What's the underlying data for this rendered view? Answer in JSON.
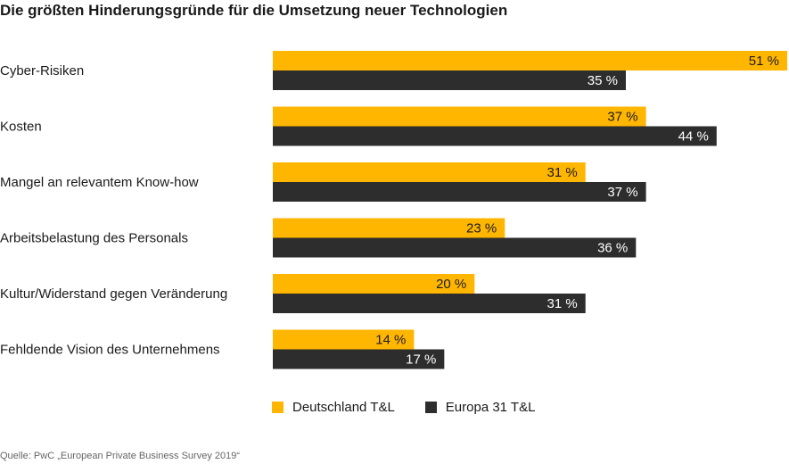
{
  "title": "Die größten Hinderungsgründe für die Umsetzung neuer Technologien",
  "source": "Quelle: PwC „European Private Business Survey 2019“",
  "chart_data": {
    "type": "bar",
    "orientation": "horizontal",
    "title": "Die größten Hinderungsgründe für die Umsetzung neuer Technologien",
    "categories": [
      "Cyber-Risiken",
      "Kosten",
      "Mangel an relevantem Know-how",
      "Arbeitsbelastung des Personals",
      "Kultur/Widerstand gegen Veränderung",
      "Fehldende Vision des Unternehmens"
    ],
    "series": [
      {
        "name": "Deutschland T&L",
        "color": "#ffb600",
        "label_color": "#1a1a1a",
        "values": [
          51,
          37,
          31,
          23,
          20,
          14
        ]
      },
      {
        "name": "Europa 31 T&L",
        "color": "#2d2d2d",
        "label_color": "#ffffff",
        "values": [
          35,
          44,
          37,
          36,
          31,
          17
        ]
      }
    ],
    "value_suffix": " %",
    "xlim": [
      0,
      51
    ],
    "grid": false,
    "legend": "bottom"
  }
}
